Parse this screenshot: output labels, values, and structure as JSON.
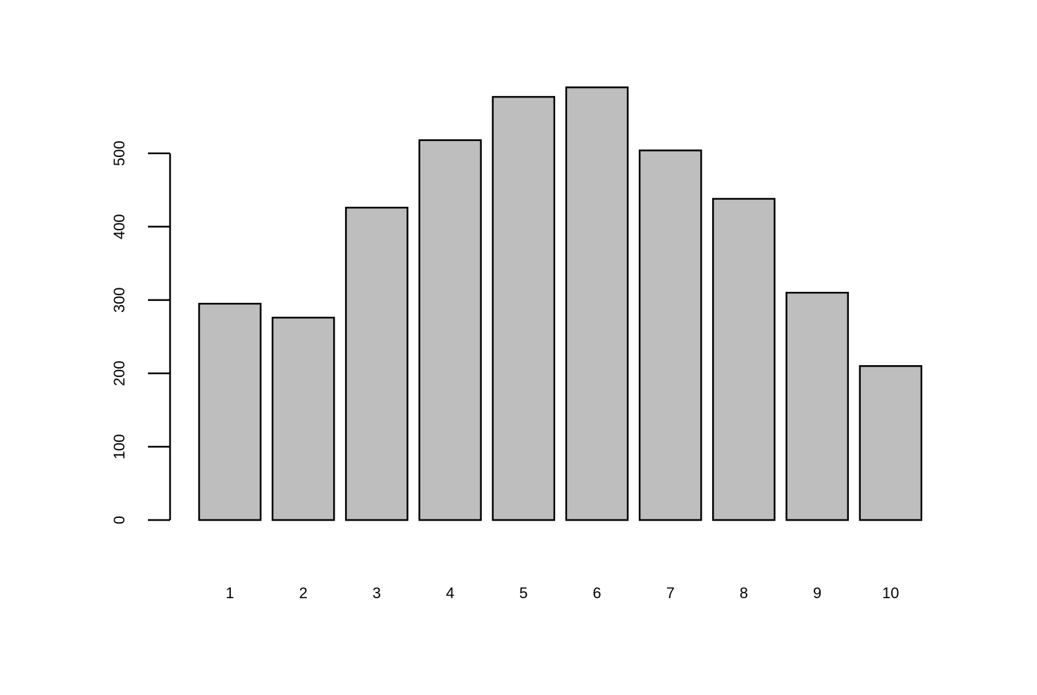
{
  "chart_data": {
    "type": "bar",
    "title": "",
    "xlabel": "",
    "ylabel": "",
    "categories": [
      "1",
      "2",
      "3",
      "4",
      "5",
      "6",
      "7",
      "8",
      "9",
      "10"
    ],
    "values": [
      295,
      276,
      426,
      518,
      577,
      590,
      504,
      438,
      310,
      210
    ],
    "ylim": [
      0,
      590
    ],
    "yticks": [
      "0",
      "100",
      "200",
      "300",
      "400",
      "500"
    ],
    "bar_color": "#bebebe",
    "bar_border_color": "#000000",
    "grid": false,
    "legend": "none"
  }
}
